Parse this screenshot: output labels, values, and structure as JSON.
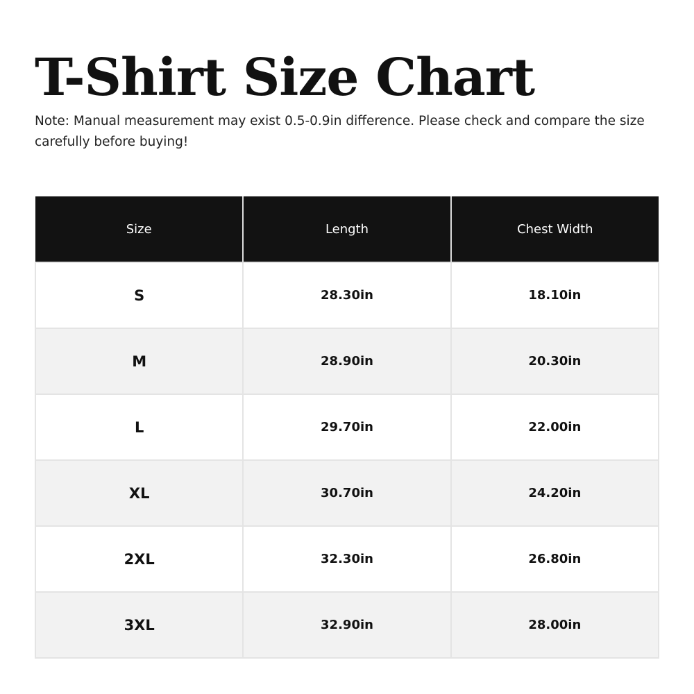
{
  "title": "T-Shirt Size Chart",
  "note": "Note: Manual measurement may exist 0.5-0.9in difference. Please check and compare the size carefully before buying!",
  "table": {
    "headers": [
      "Size",
      "Length",
      "Chest Width"
    ],
    "rows": [
      [
        "S",
        "28.30in",
        "18.10in"
      ],
      [
        "M",
        "28.90in",
        "20.30in"
      ],
      [
        "L",
        "29.70in",
        "22.00in"
      ],
      [
        "XL",
        "30.70in",
        "24.20in"
      ],
      [
        "2XL",
        "32.30in",
        "26.80in"
      ],
      [
        "3XL",
        "32.90in",
        "28.00in"
      ]
    ]
  },
  "colors": {
    "header_bg": "#121212",
    "header_text": "#ffffff",
    "row_alt_bg": "#f2f2f2"
  }
}
